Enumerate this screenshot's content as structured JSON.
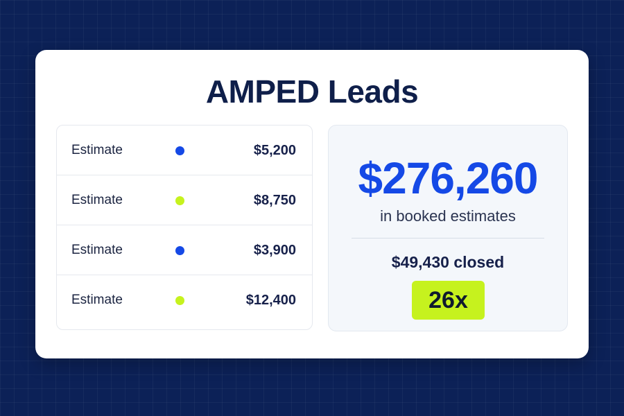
{
  "title": "AMPED Leads",
  "estimates": [
    {
      "label": "Estimate",
      "status_color": "#1549e6",
      "amount": "$5,200"
    },
    {
      "label": "Estimate",
      "status_color": "#c6f21e",
      "amount": "$8,750"
    },
    {
      "label": "Estimate",
      "status_color": "#1549e6",
      "amount": "$3,900"
    },
    {
      "label": "Estimate",
      "status_color": "#c6f21e",
      "amount": "$12,400"
    }
  ],
  "summary": {
    "total": "$276,260",
    "total_caption": "in booked estimates",
    "closed": "$49,430 closed",
    "multiplier": "26x"
  },
  "colors": {
    "background": "#0c2157",
    "accent_blue": "#1549e6",
    "accent_lime": "#c6f21e"
  }
}
